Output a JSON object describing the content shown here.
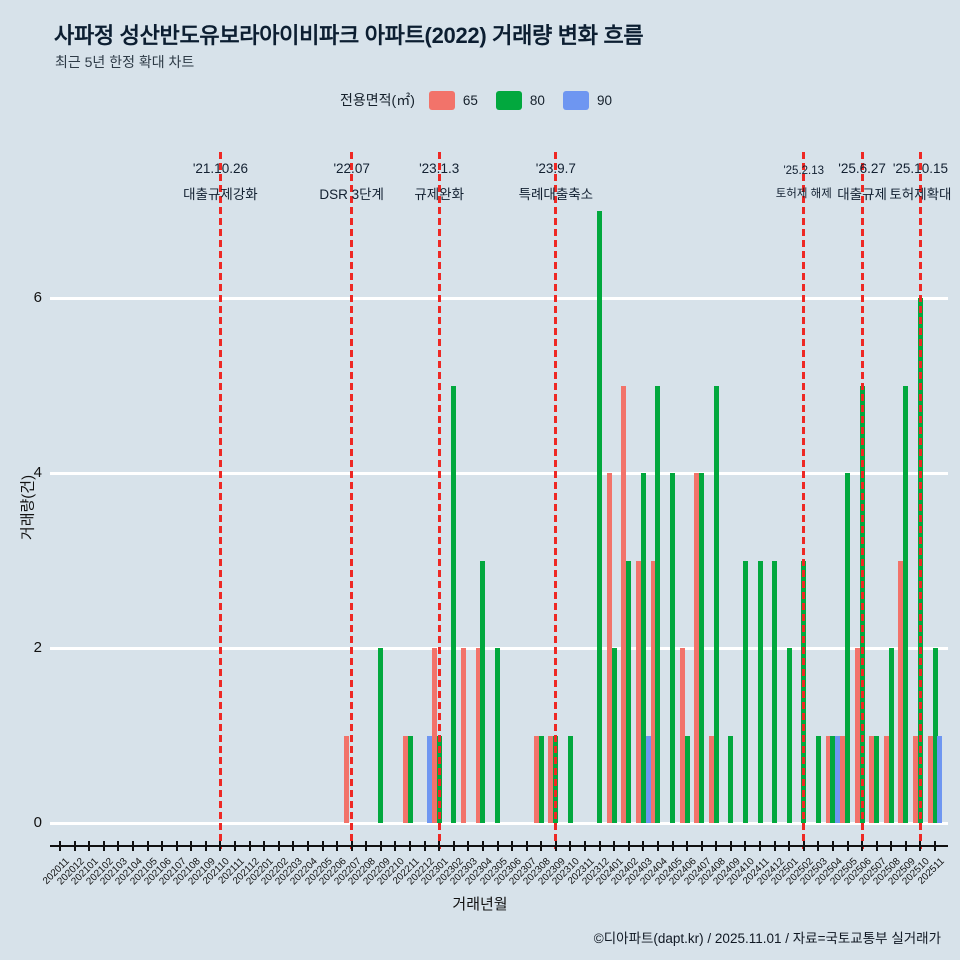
{
  "title": "사파정 성산반도유보라아이비파크 아파트(2022) 거래량 변화 흐름",
  "subtitle": "최근 5년 한정 확대 차트",
  "legend": {
    "label": "전용면적(㎡)",
    "items": [
      {
        "name": "65",
        "color": "#f2736a"
      },
      {
        "name": "80",
        "color": "#02a83e"
      },
      {
        "name": "90",
        "color": "#6e96f1"
      }
    ]
  },
  "footer": "©디아파트(dapt.kr) / 2025.11.01 / 자료=국토교통부 실거래가",
  "colors": {
    "background": "#d7e2ea",
    "gridline": "#ffffff",
    "annotation_line": "#ee2824",
    "axis": "#111111"
  },
  "chart_data": {
    "type": "bar",
    "title": "사파정 성산반도유보라아이비파크 아파트(2022) 거래량 변화 흐름",
    "xlabel": "거래년월",
    "ylabel": "거래량(건)",
    "yticks": [
      0,
      2,
      4,
      6
    ],
    "ylim": [
      0,
      7
    ],
    "grid": true,
    "legend_position": "top-center",
    "categories": [
      "202011",
      "202012",
      "202101",
      "202102",
      "202103",
      "202104",
      "202105",
      "202106",
      "202107",
      "202108",
      "202109",
      "202110",
      "202111",
      "202112",
      "202201",
      "202202",
      "202203",
      "202204",
      "202205",
      "202206",
      "202207",
      "202208",
      "202209",
      "202210",
      "202211",
      "202212",
      "202301",
      "202302",
      "202303",
      "202304",
      "202305",
      "202306",
      "202307",
      "202308",
      "202309",
      "202310",
      "202311",
      "202312",
      "202401",
      "202402",
      "202403",
      "202404",
      "202405",
      "202406",
      "202407",
      "202408",
      "202409",
      "202410",
      "202411",
      "202412",
      "202501",
      "202502",
      "202503",
      "202504",
      "202505",
      "202506",
      "202507",
      "202508",
      "202509",
      "202510",
      "202511"
    ],
    "series": [
      {
        "name": "65",
        "color": "#f2736a",
        "values": [
          0,
          0,
          0,
          0,
          0,
          0,
          0,
          0,
          0,
          0,
          0,
          0,
          0,
          0,
          0,
          0,
          0,
          0,
          0,
          0,
          1,
          0,
          0,
          0,
          1,
          0,
          2,
          0,
          2,
          2,
          0,
          0,
          0,
          1,
          1,
          0,
          0,
          0,
          4,
          5,
          3,
          3,
          0,
          2,
          4,
          1,
          0,
          0,
          0,
          0,
          0,
          0,
          0,
          1,
          1,
          2,
          1,
          1,
          3,
          1,
          1
        ]
      },
      {
        "name": "80",
        "color": "#02a83e",
        "values": [
          0,
          0,
          0,
          0,
          0,
          0,
          0,
          0,
          0,
          0,
          0,
          0,
          0,
          0,
          0,
          0,
          0,
          0,
          0,
          0,
          0,
          0,
          2,
          0,
          1,
          0,
          1,
          5,
          0,
          3,
          2,
          0,
          0,
          1,
          1,
          1,
          0,
          7,
          2,
          3,
          4,
          5,
          4,
          1,
          4,
          5,
          1,
          3,
          3,
          3,
          2,
          3,
          1,
          1,
          4,
          5,
          1,
          2,
          5,
          6,
          2
        ]
      },
      {
        "name": "90",
        "color": "#6e96f1",
        "values": [
          0,
          0,
          0,
          0,
          0,
          0,
          0,
          0,
          0,
          0,
          0,
          0,
          0,
          0,
          0,
          0,
          0,
          0,
          0,
          0,
          0,
          0,
          0,
          0,
          0,
          1,
          0,
          0,
          0,
          0,
          0,
          0,
          0,
          0,
          0,
          0,
          0,
          0,
          0,
          0,
          1,
          0,
          0,
          0,
          0,
          0,
          0,
          0,
          0,
          0,
          0,
          0,
          0,
          1,
          0,
          0,
          0,
          0,
          0,
          0,
          1
        ]
      }
    ],
    "annotations": [
      {
        "month": "202110",
        "date": "'21.10.26",
        "label": "대출규제강화",
        "small": false
      },
      {
        "month": "202207",
        "date": "'22.07",
        "label": "DSR 3단계",
        "small": false
      },
      {
        "month": "202301",
        "date": "'23.1.3",
        "label": "규제완화",
        "small": false
      },
      {
        "month": "202309",
        "date": "'23.9.7",
        "label": "특례대출축소",
        "small": false
      },
      {
        "month": "202502",
        "date": "'25.2.13",
        "label": "토허제 해제",
        "small": true
      },
      {
        "month": "202506",
        "date": "'25.6.27",
        "label": "대출규제",
        "small": false
      },
      {
        "month": "202510",
        "date": "'25.10.15",
        "label": "토허제확대",
        "small": false
      }
    ]
  }
}
